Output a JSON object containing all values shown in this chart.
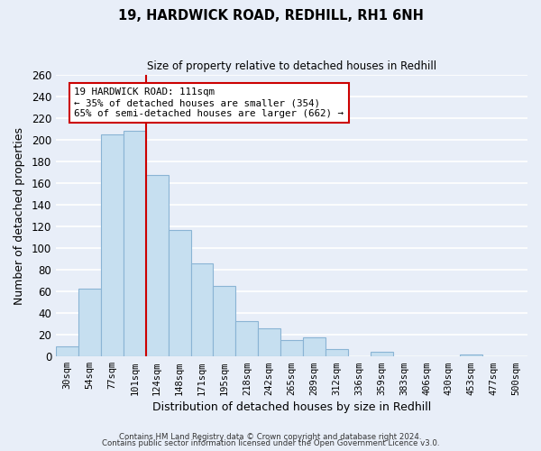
{
  "title": "19, HARDWICK ROAD, REDHILL, RH1 6NH",
  "subtitle": "Size of property relative to detached houses in Redhill",
  "xlabel": "Distribution of detached houses by size in Redhill",
  "ylabel": "Number of detached properties",
  "bar_labels": [
    "30sqm",
    "54sqm",
    "77sqm",
    "101sqm",
    "124sqm",
    "148sqm",
    "171sqm",
    "195sqm",
    "218sqm",
    "242sqm",
    "265sqm",
    "289sqm",
    "312sqm",
    "336sqm",
    "359sqm",
    "383sqm",
    "406sqm",
    "430sqm",
    "453sqm",
    "477sqm",
    "500sqm"
  ],
  "bar_values": [
    9,
    63,
    205,
    208,
    168,
    117,
    86,
    65,
    33,
    26,
    15,
    18,
    7,
    0,
    4,
    0,
    0,
    0,
    2,
    0,
    0
  ],
  "bar_color": "#c6dff0",
  "bar_edge_color": "#8ab4d4",
  "annotation_text_line1": "19 HARDWICK ROAD: 111sqm",
  "annotation_text_line2": "← 35% of detached houses are smaller (354)",
  "annotation_text_line3": "65% of semi-detached houses are larger (662) →",
  "annotation_box_color": "#ffffff",
  "annotation_box_edge": "#cc0000",
  "vline_color": "#cc0000",
  "vline_x": 3.5,
  "ylim": [
    0,
    260
  ],
  "yticks": [
    0,
    20,
    40,
    60,
    80,
    100,
    120,
    140,
    160,
    180,
    200,
    220,
    240,
    260
  ],
  "footer_line1": "Contains HM Land Registry data © Crown copyright and database right 2024.",
  "footer_line2": "Contains public sector information licensed under the Open Government Licence v3.0.",
  "background_color": "#e8eef8",
  "grid_color": "#ffffff"
}
